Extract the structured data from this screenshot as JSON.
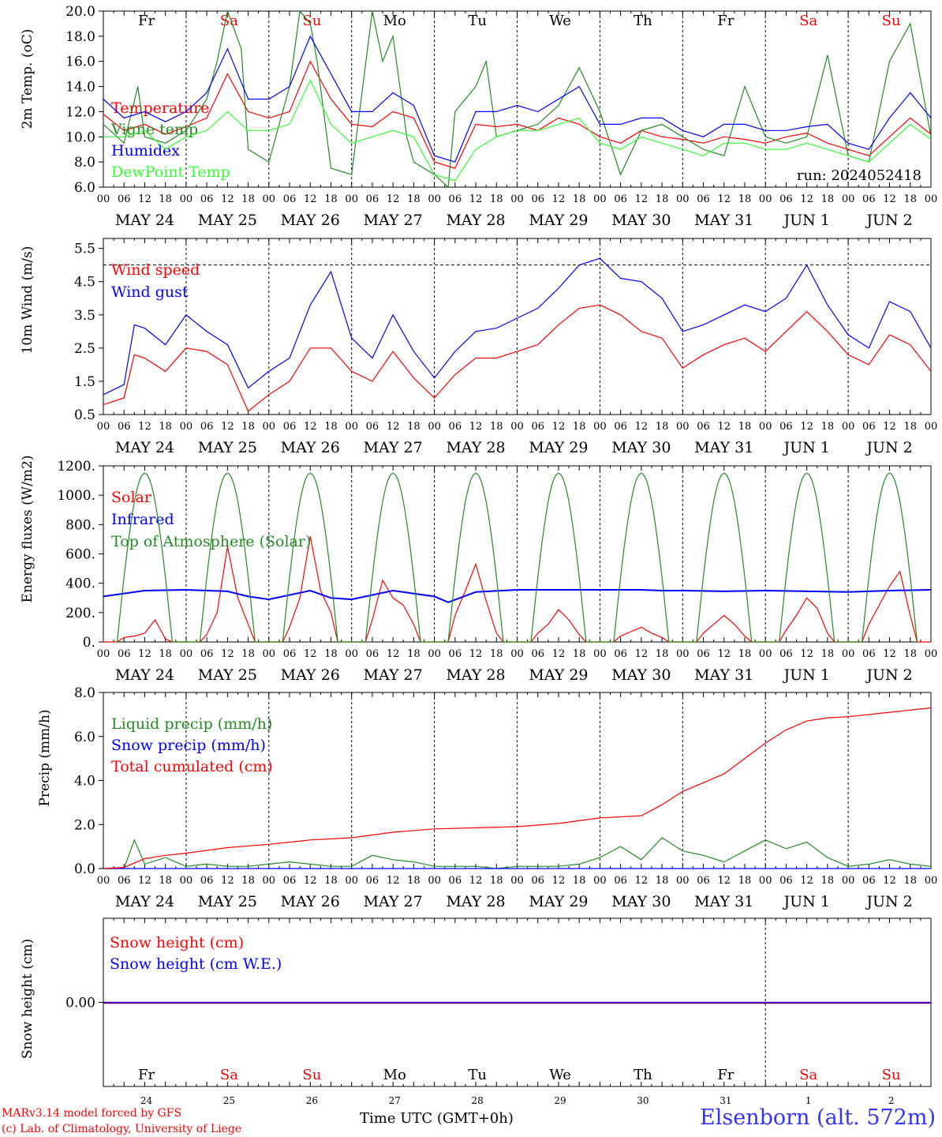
{
  "meta": {
    "run": "run: 2024052418",
    "model": "MARv3.14 model forced by GFS",
    "lab": "(c) Lab. of Climatology, University of Liege",
    "time_axis_label": "Time UTC (GMT+0h)",
    "time_axis_overlay": "MAY",
    "site": "Elsenborn (alt. 572m)"
  },
  "days": [
    {
      "abbr": "Fr",
      "date": "MAY 24",
      "num": "24",
      "weekend": false
    },
    {
      "abbr": "Sa",
      "date": "MAY 25",
      "num": "25",
      "weekend": true
    },
    {
      "abbr": "Su",
      "date": "MAY 26",
      "num": "26",
      "weekend": true
    },
    {
      "abbr": "Mo",
      "date": "MAY 27",
      "num": "27",
      "weekend": false
    },
    {
      "abbr": "Tu",
      "date": "MAY 28",
      "num": "28",
      "weekend": false
    },
    {
      "abbr": "We",
      "date": "MAY 29",
      "num": "29",
      "weekend": false
    },
    {
      "abbr": "Th",
      "date": "MAY 30",
      "num": "30",
      "weekend": false
    },
    {
      "abbr": "Fr",
      "date": "MAY 31",
      "num": "31",
      "weekend": false
    },
    {
      "abbr": "Sa",
      "date": "JUN  1",
      "num": "1",
      "weekend": true
    },
    {
      "abbr": "Su",
      "date": "JUN  2",
      "num": "2",
      "weekend": true
    }
  ],
  "hour_ticks": [
    "00",
    "06",
    "12",
    "18"
  ],
  "colors": {
    "red": "#ff0000",
    "green": "#228b22",
    "blue": "#0000ff",
    "lime": "#33ff33",
    "purple": "#800080",
    "weekend": "#ff0000"
  },
  "chart_data": [
    {
      "type": "line",
      "ylabel": "2m Temp. (oC)",
      "ylim": [
        6,
        20
      ],
      "ticks": [
        "6.0",
        "8.0",
        "10.0",
        "12.0",
        "14.0",
        "16.0",
        "18.0",
        "20.0"
      ],
      "x_unit": "hours since May 24 00 UTC",
      "series": [
        {
          "name": "Temperature",
          "color": "#ff0000",
          "x": [
            0,
            6,
            12,
            18,
            24,
            30,
            36,
            42,
            48,
            54,
            60,
            66,
            72,
            78,
            84,
            90,
            96,
            102,
            108,
            114,
            120,
            126,
            132,
            138,
            144,
            150,
            156,
            162,
            168,
            174,
            180,
            186,
            192,
            198,
            204,
            210,
            216,
            222,
            228,
            234,
            240
          ],
          "y": [
            11.8,
            10.5,
            11.0,
            10.2,
            10.8,
            11.5,
            15.0,
            12.0,
            11.5,
            12.0,
            16.0,
            13.0,
            11.0,
            10.8,
            12.0,
            11.5,
            8.0,
            7.5,
            11.0,
            10.8,
            11.0,
            10.5,
            11.5,
            11.0,
            10.0,
            9.5,
            10.5,
            10.0,
            9.8,
            9.5,
            10.0,
            9.8,
            9.5,
            10.0,
            10.3,
            9.5,
            9.0,
            8.5,
            10.0,
            11.5,
            10.2
          ]
        },
        {
          "name": "Vigne temp",
          "color": "#228b22",
          "x": [
            0,
            6,
            10,
            12,
            18,
            24,
            30,
            33,
            36,
            40,
            42,
            48,
            54,
            57,
            60,
            62,
            66,
            72,
            78,
            81,
            84,
            88,
            90,
            96,
            100,
            102,
            108,
            111,
            114,
            120,
            126,
            132,
            138,
            144,
            150,
            156,
            162,
            168,
            174,
            180,
            186,
            192,
            198,
            204,
            210,
            216,
            222,
            228,
            234,
            240
          ],
          "y": [
            11.0,
            9.5,
            14.0,
            10.0,
            9.5,
            10.5,
            13.0,
            16.0,
            20.0,
            17.0,
            9.0,
            8.0,
            14.0,
            20.0,
            19.0,
            16.0,
            7.5,
            7.0,
            20.0,
            16.0,
            18.0,
            10.0,
            8.0,
            7.0,
            6.0,
            12.0,
            14.0,
            16.0,
            10.0,
            10.5,
            11.0,
            12.5,
            15.5,
            12.0,
            7.0,
            10.5,
            11.0,
            10.0,
            9.0,
            8.5,
            14.0,
            10.0,
            9.5,
            10.0,
            16.5,
            8.5,
            8.0,
            16.0,
            19.0,
            10.0
          ]
        },
        {
          "name": "Humidex",
          "color": "#0000ff",
          "x": [
            0,
            6,
            12,
            18,
            24,
            30,
            36,
            42,
            48,
            54,
            60,
            66,
            72,
            78,
            84,
            90,
            96,
            102,
            108,
            114,
            120,
            126,
            132,
            138,
            144,
            150,
            156,
            162,
            168,
            174,
            180,
            186,
            192,
            198,
            204,
            210,
            216,
            222,
            228,
            234,
            240
          ],
          "y": [
            13.0,
            11.5,
            12.0,
            11.2,
            12.0,
            13.5,
            17.0,
            13.0,
            13.0,
            14.0,
            18.0,
            15.0,
            12.0,
            12.0,
            13.5,
            12.5,
            8.5,
            8.0,
            12.0,
            12.0,
            12.5,
            12.0,
            13.0,
            14.0,
            11.0,
            11.0,
            11.5,
            11.5,
            10.5,
            10.0,
            11.0,
            11.0,
            10.5,
            10.5,
            10.8,
            11.0,
            9.5,
            9.0,
            11.5,
            13.5,
            11.5
          ]
        },
        {
          "name": "DewPoint Temp",
          "color": "#33ff33",
          "x": [
            0,
            6,
            12,
            18,
            24,
            30,
            36,
            42,
            48,
            54,
            60,
            66,
            72,
            78,
            84,
            90,
            96,
            102,
            108,
            114,
            120,
            126,
            132,
            138,
            144,
            150,
            156,
            162,
            168,
            174,
            180,
            186,
            192,
            198,
            204,
            210,
            216,
            222,
            228,
            234,
            240
          ],
          "y": [
            10.0,
            10.0,
            10.5,
            9.0,
            10.0,
            10.5,
            12.0,
            10.5,
            10.5,
            11.0,
            14.5,
            11.0,
            9.5,
            10.0,
            10.5,
            10.0,
            7.0,
            6.5,
            9.0,
            10.0,
            10.5,
            10.5,
            11.0,
            11.5,
            9.5,
            9.0,
            10.0,
            9.5,
            9.0,
            8.5,
            9.5,
            9.5,
            9.0,
            9.0,
            9.5,
            9.0,
            8.5,
            8.0,
            9.5,
            11.0,
            9.8
          ]
        }
      ]
    },
    {
      "type": "line",
      "ylabel": "10m Wind (m/s)",
      "ylim": [
        0.5,
        5.8
      ],
      "ticks": [
        "0.5",
        "1.5",
        "2.5",
        "3.5",
        "4.5",
        "5.5"
      ],
      "ref_line": 5.0,
      "series": [
        {
          "name": "Wind speed",
          "color": "#ff0000",
          "x": [
            0,
            6,
            9,
            12,
            18,
            24,
            30,
            36,
            42,
            48,
            54,
            60,
            66,
            72,
            78,
            84,
            90,
            96,
            102,
            108,
            114,
            120,
            126,
            132,
            138,
            144,
            150,
            156,
            162,
            168,
            174,
            180,
            186,
            192,
            198,
            204,
            210,
            216,
            222,
            228,
            234,
            240
          ],
          "y": [
            0.8,
            1.0,
            2.3,
            2.2,
            1.8,
            2.5,
            2.4,
            2.0,
            0.6,
            1.1,
            1.5,
            2.5,
            2.5,
            1.8,
            1.5,
            2.4,
            1.6,
            1.0,
            1.7,
            2.2,
            2.2,
            2.4,
            2.6,
            3.2,
            3.7,
            3.8,
            3.5,
            3.0,
            2.8,
            1.9,
            2.3,
            2.6,
            2.8,
            2.4,
            3.0,
            3.6,
            3.0,
            2.3,
            2.0,
            2.9,
            2.6,
            1.8
          ]
        },
        {
          "name": "Wind gust",
          "color": "#0000ff",
          "x": [
            0,
            6,
            9,
            12,
            18,
            24,
            30,
            36,
            42,
            48,
            54,
            60,
            66,
            72,
            78,
            84,
            90,
            96,
            102,
            108,
            114,
            120,
            126,
            132,
            138,
            144,
            150,
            156,
            162,
            168,
            174,
            180,
            186,
            192,
            198,
            204,
            210,
            216,
            222,
            228,
            234,
            240
          ],
          "y": [
            1.1,
            1.4,
            3.2,
            3.1,
            2.6,
            3.5,
            3.0,
            2.6,
            1.3,
            1.8,
            2.2,
            3.8,
            4.8,
            2.8,
            2.2,
            3.5,
            2.4,
            1.6,
            2.4,
            3.0,
            3.1,
            3.4,
            3.7,
            4.3,
            5.0,
            5.2,
            4.6,
            4.5,
            4.0,
            3.0,
            3.2,
            3.5,
            3.8,
            3.6,
            4.0,
            5.0,
            3.8,
            2.9,
            2.5,
            3.9,
            3.6,
            2.5
          ]
        }
      ]
    },
    {
      "type": "line",
      "ylabel": "Energy fluxes (W/m2)",
      "ylim": [
        0,
        1200
      ],
      "ticks": [
        "0.",
        "200.",
        "400.",
        "600.",
        "800.",
        "1000.",
        "1200."
      ],
      "series": [
        {
          "name": "Solar",
          "color": "#ff0000",
          "x": [
            0,
            4,
            6,
            9,
            12,
            15,
            18,
            20,
            24,
            28,
            30,
            33,
            36,
            39,
            42,
            44,
            48,
            52,
            54,
            57,
            60,
            63,
            66,
            68,
            72,
            76,
            78,
            81,
            84,
            87,
            90,
            92,
            96,
            100,
            102,
            105,
            108,
            111,
            114,
            116,
            120,
            124,
            126,
            129,
            132,
            135,
            138,
            140,
            144,
            148,
            150,
            153,
            156,
            159,
            162,
            164,
            168,
            172,
            174,
            177,
            180,
            183,
            186,
            188,
            192,
            196,
            198,
            201,
            204,
            207,
            210,
            212,
            216,
            220,
            222,
            225,
            228,
            231,
            234,
            236,
            240
          ],
          "y": [
            0,
            0,
            30,
            40,
            60,
            150,
            20,
            0,
            0,
            0,
            50,
            200,
            650,
            300,
            120,
            0,
            0,
            0,
            100,
            300,
            720,
            350,
            200,
            0,
            0,
            0,
            150,
            420,
            300,
            250,
            120,
            0,
            0,
            0,
            180,
            350,
            530,
            280,
            60,
            0,
            0,
            0,
            60,
            120,
            220,
            150,
            50,
            0,
            0,
            0,
            40,
            70,
            100,
            60,
            30,
            0,
            0,
            0,
            60,
            120,
            180,
            120,
            40,
            0,
            0,
            0,
            80,
            180,
            300,
            230,
            60,
            0,
            0,
            0,
            120,
            250,
            380,
            480,
            180,
            0,
            0
          ]
        },
        {
          "name": "Infrared",
          "color": "#0000ff",
          "x": [
            0,
            12,
            24,
            36,
            42,
            48,
            60,
            66,
            72,
            84,
            90,
            96,
            100,
            108,
            120,
            132,
            144,
            156,
            162,
            168,
            180,
            192,
            204,
            216,
            228,
            240
          ],
          "y": [
            310,
            350,
            355,
            345,
            310,
            290,
            350,
            300,
            290,
            350,
            330,
            310,
            270,
            340,
            355,
            355,
            355,
            355,
            350,
            350,
            345,
            350,
            345,
            340,
            350,
            355
          ]
        },
        {
          "name": "Top of Atmosphere (Solar)",
          "color": "#228b22",
          "daily_peak": 1150,
          "sunrise_hour": 4,
          "sunset_hour": 20
        }
      ]
    },
    {
      "type": "line",
      "ylabel": "Precip (mm/h)",
      "ylim": [
        0,
        8
      ],
      "ticks": [
        "0.0",
        "2.0",
        "4.0",
        "6.0",
        "8.0"
      ],
      "series": [
        {
          "name": "Liquid precip (mm/h)",
          "color": "#228b22",
          "x": [
            0,
            6,
            9,
            12,
            18,
            24,
            30,
            36,
            42,
            48,
            54,
            60,
            66,
            72,
            78,
            84,
            90,
            96,
            102,
            108,
            114,
            120,
            126,
            132,
            138,
            144,
            150,
            156,
            162,
            168,
            174,
            180,
            186,
            192,
            198,
            204,
            210,
            216,
            222,
            228,
            234,
            240
          ],
          "y": [
            0,
            0,
            1.3,
            0.2,
            0.5,
            0.1,
            0.2,
            0.1,
            0.1,
            0.2,
            0.3,
            0.2,
            0.1,
            0.1,
            0.6,
            0.4,
            0.3,
            0.1,
            0.1,
            0.1,
            0.0,
            0.1,
            0.1,
            0.1,
            0.2,
            0.5,
            1.0,
            0.4,
            1.4,
            0.8,
            0.6,
            0.3,
            0.8,
            1.3,
            0.9,
            1.2,
            0.5,
            0.1,
            0.2,
            0.4,
            0.2,
            0.1
          ]
        },
        {
          "name": "Snow precip (mm/h)",
          "color": "#0000ff",
          "x": [
            0,
            240
          ],
          "y": [
            0,
            0
          ]
        },
        {
          "name": "Total cumulated (cm)",
          "color": "#ff0000",
          "x": [
            0,
            6,
            12,
            18,
            24,
            36,
            48,
            60,
            72,
            84,
            96,
            108,
            120,
            132,
            144,
            156,
            162,
            168,
            174,
            180,
            186,
            192,
            198,
            204,
            210,
            216,
            228,
            240
          ],
          "y": [
            0,
            0.05,
            0.45,
            0.6,
            0.7,
            0.95,
            1.1,
            1.3,
            1.4,
            1.65,
            1.8,
            1.85,
            1.9,
            2.05,
            2.3,
            2.4,
            2.9,
            3.5,
            3.9,
            4.3,
            5.0,
            5.7,
            6.3,
            6.7,
            6.85,
            6.9,
            7.1,
            7.3
          ]
        }
      ]
    },
    {
      "type": "line",
      "ylabel": "Snow height (cm)",
      "ylim": [
        -1,
        1
      ],
      "ticks": [
        "0.00"
      ],
      "series": [
        {
          "name": "Snow height (cm)",
          "color": "#ff0000",
          "x": [
            0,
            240
          ],
          "y": [
            0,
            0
          ]
        },
        {
          "name": "Snow height (cm W.E.)",
          "color": "#0000ff",
          "x": [
            0,
            240
          ],
          "y": [
            0,
            0
          ]
        }
      ]
    }
  ]
}
